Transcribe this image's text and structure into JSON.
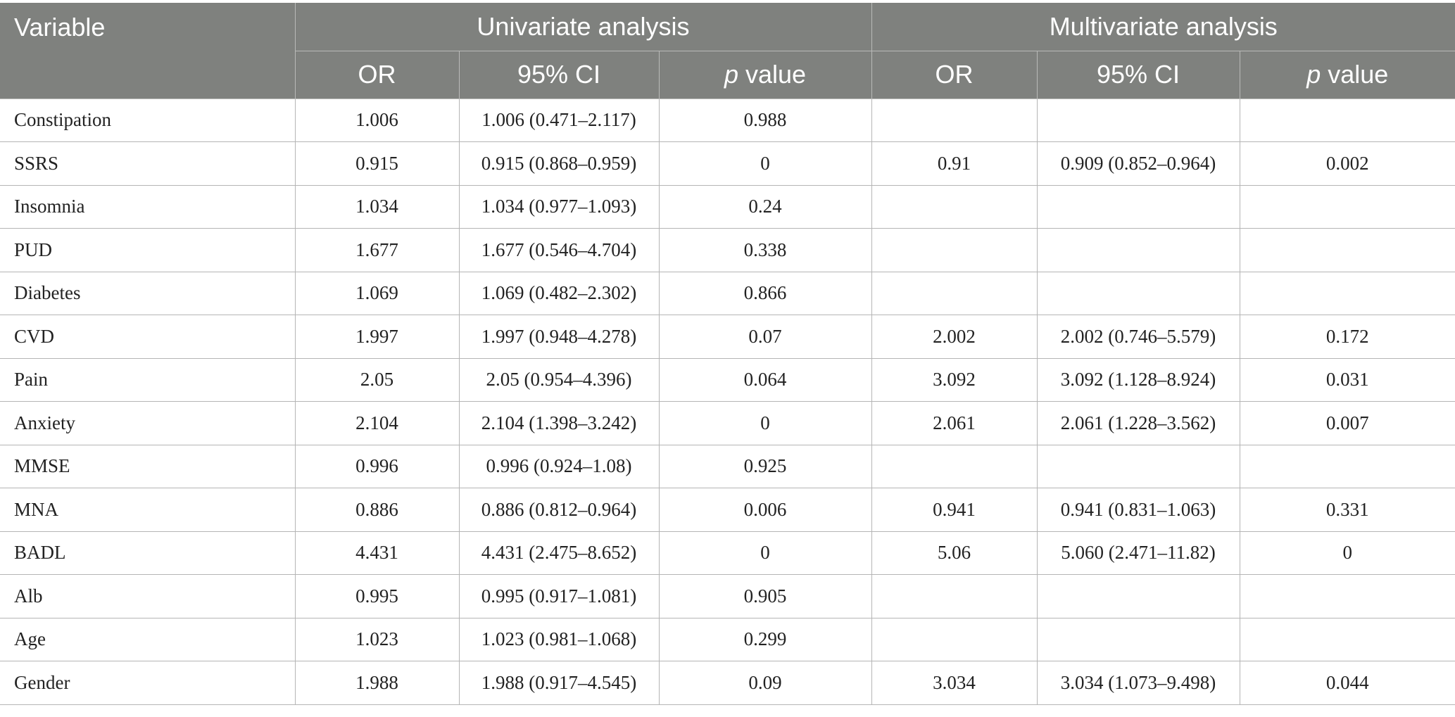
{
  "header": {
    "variable": "Variable",
    "univariate": "Univariate analysis",
    "multivariate": "Multivariate analysis",
    "or": "OR",
    "ci": "95% CI",
    "p_letter": "p",
    "p_rest": " value"
  },
  "rows": [
    {
      "variable": "Constipation",
      "u_or": "1.006",
      "u_ci": "1.006 (0.471–2.117)",
      "u_p": "0.988",
      "m_or": "",
      "m_ci": "",
      "m_p": ""
    },
    {
      "variable": "SSRS",
      "u_or": "0.915",
      "u_ci": "0.915 (0.868–0.959)",
      "u_p": "0",
      "m_or": "0.91",
      "m_ci": "0.909 (0.852–0.964)",
      "m_p": "0.002"
    },
    {
      "variable": "Insomnia",
      "u_or": "1.034",
      "u_ci": "1.034 (0.977–1.093)",
      "u_p": "0.24",
      "m_or": "",
      "m_ci": "",
      "m_p": ""
    },
    {
      "variable": "PUD",
      "u_or": "1.677",
      "u_ci": "1.677 (0.546–4.704)",
      "u_p": "0.338",
      "m_or": "",
      "m_ci": "",
      "m_p": ""
    },
    {
      "variable": "Diabetes",
      "u_or": "1.069",
      "u_ci": "1.069 (0.482–2.302)",
      "u_p": "0.866",
      "m_or": "",
      "m_ci": "",
      "m_p": ""
    },
    {
      "variable": "CVD",
      "u_or": "1.997",
      "u_ci": "1.997 (0.948–4.278)",
      "u_p": "0.07",
      "m_or": "2.002",
      "m_ci": "2.002 (0.746–5.579)",
      "m_p": "0.172"
    },
    {
      "variable": "Pain",
      "u_or": "2.05",
      "u_ci": "2.05 (0.954–4.396)",
      "u_p": "0.064",
      "m_or": "3.092",
      "m_ci": "3.092 (1.128–8.924)",
      "m_p": "0.031"
    },
    {
      "variable": "Anxiety",
      "u_or": "2.104",
      "u_ci": "2.104 (1.398–3.242)",
      "u_p": "0",
      "m_or": "2.061",
      "m_ci": "2.061 (1.228–3.562)",
      "m_p": "0.007"
    },
    {
      "variable": "MMSE",
      "u_or": "0.996",
      "u_ci": "0.996 (0.924–1.08)",
      "u_p": "0.925",
      "m_or": "",
      "m_ci": "",
      "m_p": ""
    },
    {
      "variable": "MNA",
      "u_or": "0.886",
      "u_ci": "0.886 (0.812–0.964)",
      "u_p": "0.006",
      "m_or": "0.941",
      "m_ci": "0.941 (0.831–1.063)",
      "m_p": "0.331"
    },
    {
      "variable": "BADL",
      "u_or": "4.431",
      "u_ci": "4.431 (2.475–8.652)",
      "u_p": "0",
      "m_or": "5.06",
      "m_ci": "5.060 (2.471–11.82)",
      "m_p": "0"
    },
    {
      "variable": "Alb",
      "u_or": "0.995",
      "u_ci": "0.995 (0.917–1.081)",
      "u_p": "0.905",
      "m_or": "",
      "m_ci": "",
      "m_p": ""
    },
    {
      "variable": "Age",
      "u_or": "1.023",
      "u_ci": "1.023 (0.981–1.068)",
      "u_p": "0.299",
      "m_or": "",
      "m_ci": "",
      "m_p": ""
    },
    {
      "variable": "Gender",
      "u_or": "1.988",
      "u_ci": "1.988 (0.917–4.545)",
      "u_p": "0.09",
      "m_or": "3.034",
      "m_ci": "3.034 (1.073–9.498)",
      "m_p": "0.044"
    }
  ]
}
